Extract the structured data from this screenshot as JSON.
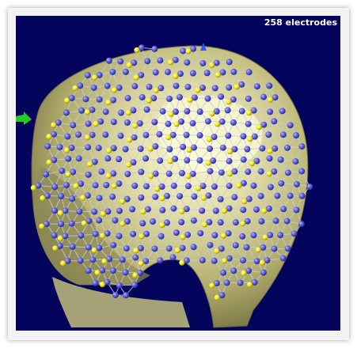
{
  "viewer": {
    "electrode_count_label": "258 electrodes"
  },
  "colors": {
    "background": "#04045c",
    "head_surface": "#d8d49a",
    "head_surface_shadow": "#8a8650",
    "head_highlight": "#fafad6",
    "mesh_lines": "#c7c7ee",
    "electrode_blue": "#5b5bd8",
    "electrode_yellow": "#f2ea20",
    "axis_green": "#22cc22",
    "axis_blue": "#3355ff"
  },
  "icons": {
    "electrode": "sphere-icon",
    "axis_x": "green-axis-arrow-icon",
    "axis_z": "blue-axis-arrow-icon"
  }
}
